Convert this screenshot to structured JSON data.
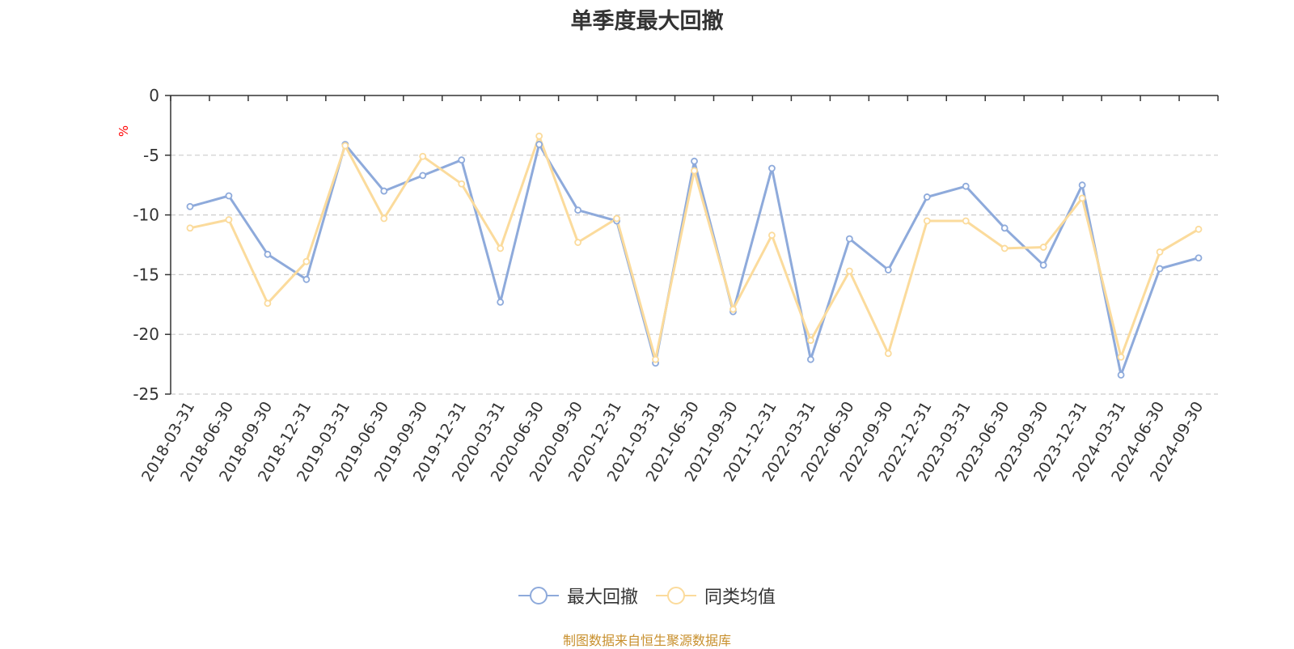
{
  "chart_data": {
    "type": "line",
    "title": "单季度最大回撤",
    "ylabel": "%",
    "xlabel": "",
    "ylim": [
      -25,
      0
    ],
    "yticks": [
      0,
      -5,
      -10,
      -15,
      -20,
      -25
    ],
    "grid": true,
    "legend_position": "bottom",
    "categories": [
      "2018-03-31",
      "2018-06-30",
      "2018-09-30",
      "2018-12-31",
      "2019-03-31",
      "2019-06-30",
      "2019-09-30",
      "2019-12-31",
      "2020-03-31",
      "2020-06-30",
      "2020-09-30",
      "2020-12-31",
      "2021-03-31",
      "2021-06-30",
      "2021-09-30",
      "2021-12-31",
      "2022-03-31",
      "2022-06-30",
      "2022-09-30",
      "2022-12-31",
      "2023-03-31",
      "2023-06-30",
      "2023-09-30",
      "2023-12-31",
      "2024-03-31",
      "2024-06-30",
      "2024-09-30"
    ],
    "series": [
      {
        "name": "最大回撤",
        "color": "#8eaadb",
        "values": [
          -9.3,
          -8.4,
          -13.3,
          -15.4,
          -4.1,
          -8.0,
          -6.7,
          -5.4,
          -17.3,
          -4.1,
          -9.6,
          -10.5,
          -22.4,
          -5.5,
          -18.1,
          -6.1,
          -22.1,
          -12.0,
          -14.6,
          -8.5,
          -7.6,
          -11.1,
          -14.2,
          -7.5,
          -23.4,
          -14.5,
          -13.6
        ]
      },
      {
        "name": "同类均值",
        "color": "#fbdb9c",
        "values": [
          -11.1,
          -10.4,
          -17.4,
          -13.9,
          -4.2,
          -10.3,
          -5.1,
          -7.4,
          -12.8,
          -3.4,
          -12.3,
          -10.3,
          -22.1,
          -6.3,
          -17.9,
          -11.7,
          -20.5,
          -14.7,
          -21.6,
          -10.5,
          -10.5,
          -12.8,
          -12.7,
          -8.6,
          -21.9,
          -13.1,
          -11.2
        ]
      }
    ]
  },
  "source_note": "制图数据来自恒生聚源数据库"
}
